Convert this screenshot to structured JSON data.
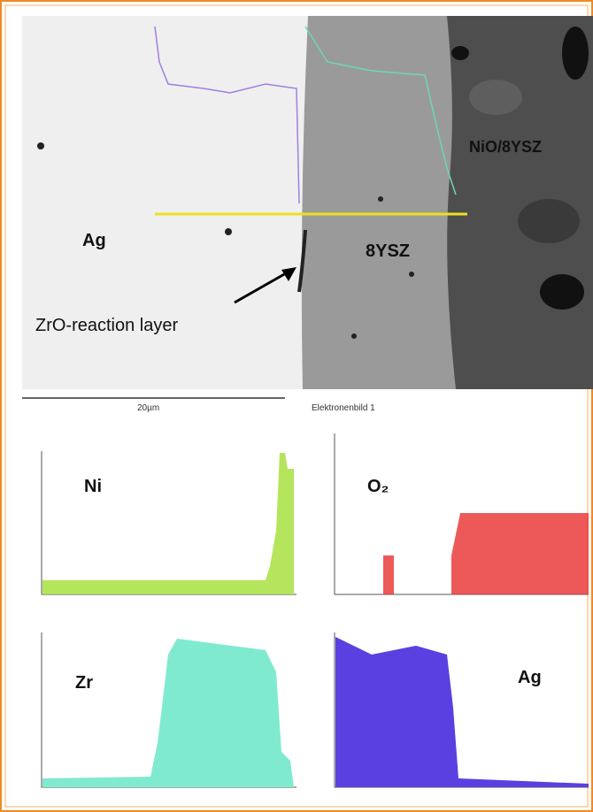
{
  "image": {
    "labels": {
      "silver": "Ag",
      "electrolyte": "8YSZ",
      "anode": "NiO/8YSZ",
      "reaction_layer": "ZrO-reaction layer"
    },
    "scale_bar": "20µm",
    "caption": "Elektronenbild 1"
  },
  "panels": [
    {
      "label": "Ni"
    },
    {
      "label": "O₂"
    },
    {
      "label": "Zr"
    },
    {
      "label": "Ag"
    }
  ]
}
